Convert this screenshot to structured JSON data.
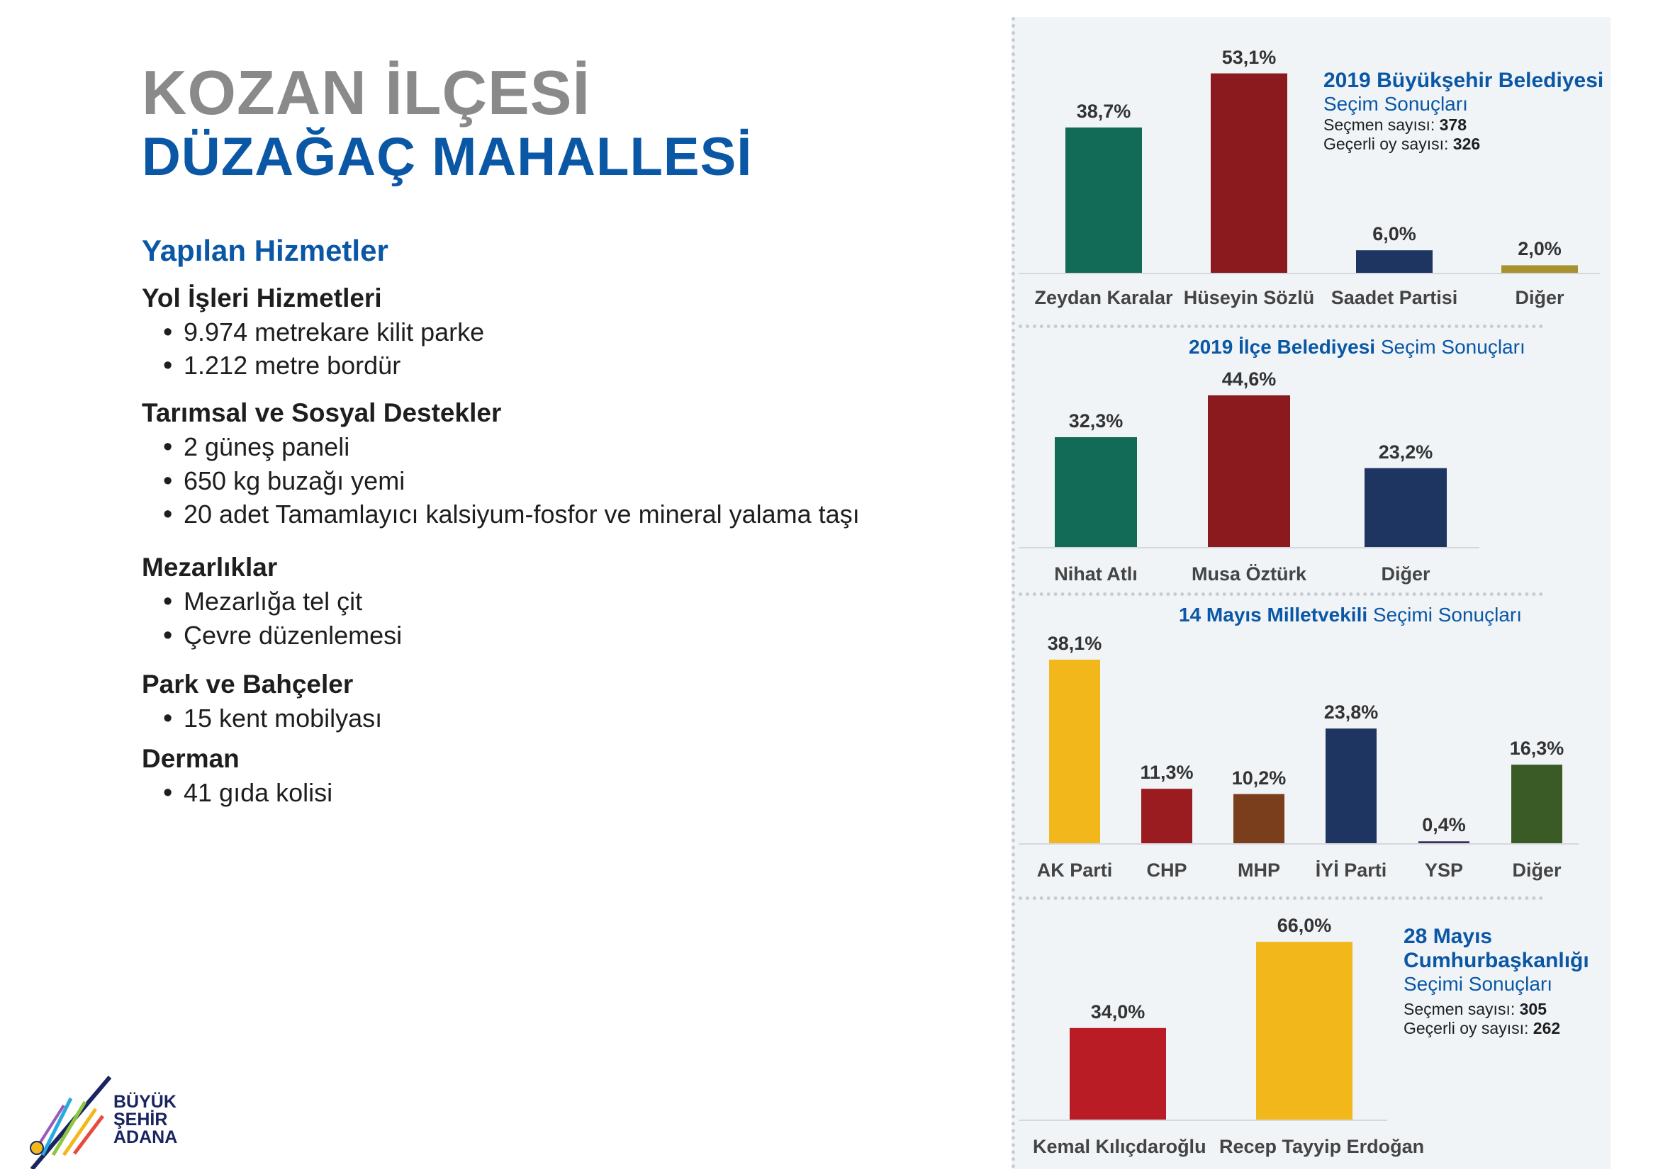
{
  "header": {
    "title_line1": "KOZAN İLÇESİ",
    "title_line2": "DÜZAĞAÇ MAHALLESİ"
  },
  "services": {
    "heading": "Yapılan Hizmetler",
    "groups": [
      {
        "title": "Yol İşleri Hizmetleri",
        "items": [
          "9.974 metrekare kilit parke",
          "1.212 metre bordür"
        ]
      },
      {
        "title": "Tarımsal ve Sosyal Destekler",
        "items": [
          "2 güneş paneli",
          "650 kg buzağı yemi",
          "20 adet Tamamlayıcı kalsiyum-fosfor ve mineral yalama taşı"
        ]
      },
      {
        "title": "Mezarlıklar",
        "items": [
          "Mezarlığa tel çit",
          "Çevre düzenlemesi"
        ]
      },
      {
        "title": "Park ve Bahçeler",
        "items": [
          "15 kent mobilyası"
        ]
      },
      {
        "title": "Derman",
        "items": [
          "41 gıda kolisi"
        ]
      }
    ]
  },
  "logo": {
    "line1": "BÜYÜK",
    "line2": "ŞEHİR",
    "line3": "ADANA"
  },
  "chart_data": [
    {
      "type": "bar",
      "title_bold": "2019 Büyükşehir Belediyesi",
      "title_rest": "Seçim Sonuçları",
      "voters_label": "Seçmen sayısı:",
      "voters_value": "378",
      "valid_label": "Geçerli oy sayısı:",
      "valid_value": "326",
      "categories": [
        "Zeydan Karalar",
        "Hüseyin Sözlü",
        "Saadet Partisi",
        "Diğer"
      ],
      "values": [
        38.7,
        53.1,
        6.0,
        2.0
      ],
      "value_labels": [
        "38,7%",
        "53,1%",
        "6,0%",
        "2,0%"
      ],
      "colors": [
        "#126b57",
        "#8b1a1e",
        "#1e3461",
        "#a89130"
      ]
    },
    {
      "type": "bar",
      "title_bold": "2019 İlçe Belediyesi",
      "title_rest": "Seçim Sonuçları",
      "categories": [
        "Nihat Atlı",
        "Musa Öztürk",
        "Diğer"
      ],
      "values": [
        32.3,
        44.6,
        23.2
      ],
      "value_labels": [
        "32,3%",
        "44,6%",
        "23,2%"
      ],
      "colors": [
        "#126b57",
        "#8b1a1e",
        "#1e3461"
      ]
    },
    {
      "type": "bar",
      "title_bold": "14 Mayıs Milletvekili",
      "title_rest": "Seçimi Sonuçları",
      "categories": [
        "AK Parti",
        "CHP",
        "MHP",
        "İYİ Parti",
        "YSP",
        "Diğer"
      ],
      "values": [
        38.1,
        11.3,
        10.2,
        23.8,
        0.4,
        16.3
      ],
      "value_labels": [
        "38,1%",
        "11,3%",
        "10,2%",
        "23,8%",
        "0,4%",
        "16,3%"
      ],
      "colors": [
        "#f2b81b",
        "#9b1c20",
        "#7a3e1c",
        "#1e3461",
        "#3c2a5e",
        "#3a5a26"
      ]
    },
    {
      "type": "bar",
      "title_bold1": "28 Mayıs",
      "title_bold2": "Cumhurbaşkanlığı",
      "title_rest": "Seçimi Sonuçları",
      "voters_label": "Seçmen sayısı:",
      "voters_value": "305",
      "valid_label": "Geçerli oy sayısı:",
      "valid_value": "262",
      "categories": [
        "Kemal Kılıçdaroğlu",
        "Recep Tayyip Erdoğan"
      ],
      "values": [
        34.0,
        66.0
      ],
      "value_labels": [
        "34,0%",
        "66,0%"
      ],
      "colors": [
        "#b91c24",
        "#f2b81b"
      ]
    }
  ]
}
